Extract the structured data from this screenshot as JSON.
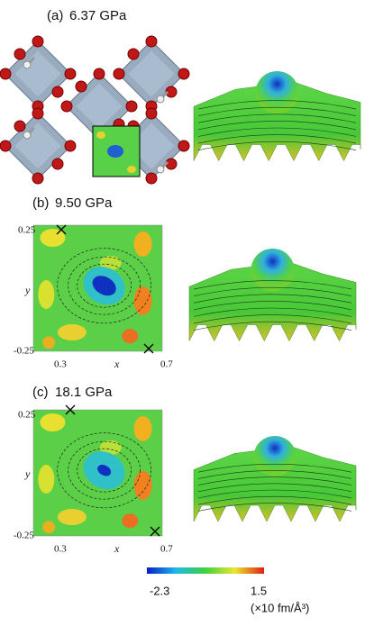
{
  "panels": [
    {
      "label": "(a)",
      "pressure": "6.37 GPa"
    },
    {
      "label": "(b)",
      "pressure": "9.50 GPa"
    },
    {
      "label": "(c)",
      "pressure": "18.1 GPa"
    }
  ],
  "map_axes": {
    "x_label": "x",
    "y_label": "y",
    "x_min": 0.3,
    "x_max": 0.7,
    "y_min": -0.25,
    "y_max": 0.25
  },
  "colorbar": {
    "min": -2.3,
    "max": 1.5,
    "unit": "(×10 fm/Å³)"
  }
}
